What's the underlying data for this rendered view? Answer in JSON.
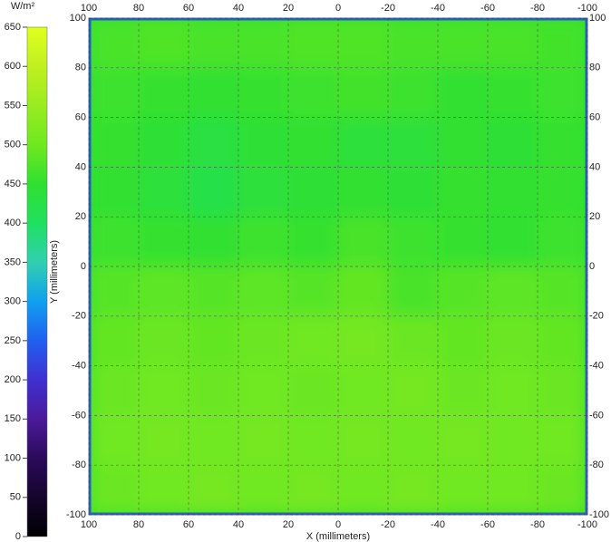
{
  "chart_data": {
    "type": "heatmap",
    "xlabel": "X (millimeters)",
    "ylabel": "Y (millimeters)",
    "colorbar_label": "W/m²",
    "xlim": [
      100,
      -100
    ],
    "ylim": [
      -100,
      100
    ],
    "xticks": [
      100,
      80,
      60,
      40,
      20,
      0,
      -20,
      -40,
      -60,
      -80,
      -100
    ],
    "yticks": [
      100,
      80,
      60,
      40,
      20,
      0,
      -20,
      -40,
      -60,
      -80,
      -100
    ],
    "zlim": [
      0,
      650
    ],
    "zticks": [
      0,
      50,
      100,
      150,
      200,
      250,
      300,
      350,
      400,
      450,
      500,
      550,
      600,
      650
    ],
    "colormap": [
      {
        "value": 0,
        "color": "#000000"
      },
      {
        "value": 100,
        "color": "#2a0a5a"
      },
      {
        "value": 150,
        "color": "#4b1a9a"
      },
      {
        "value": 200,
        "color": "#4030d0"
      },
      {
        "value": 250,
        "color": "#2060f0"
      },
      {
        "value": 300,
        "color": "#10a0f0"
      },
      {
        "value": 350,
        "color": "#30d0b0"
      },
      {
        "value": 400,
        "color": "#20e060"
      },
      {
        "value": 450,
        "color": "#30e030"
      },
      {
        "value": 500,
        "color": "#70e820"
      },
      {
        "value": 600,
        "color": "#c0f020"
      },
      {
        "value": 650,
        "color": "#e0ff20"
      }
    ],
    "grid": true,
    "x": [
      90,
      70,
      50,
      30,
      10,
      -10,
      -30,
      -50,
      -70,
      -90
    ],
    "y": [
      90,
      70,
      50,
      30,
      10,
      -10,
      -30,
      -50,
      -70,
      -90
    ],
    "z": [
      [
        470,
        475,
        470,
        470,
        475,
        475,
        470,
        470,
        470,
        465
      ],
      [
        460,
        455,
        450,
        455,
        460,
        465,
        460,
        450,
        455,
        460
      ],
      [
        455,
        445,
        430,
        445,
        450,
        440,
        440,
        450,
        445,
        455
      ],
      [
        450,
        440,
        425,
        440,
        445,
        450,
        445,
        455,
        450,
        455
      ],
      [
        460,
        455,
        450,
        460,
        455,
        470,
        460,
        455,
        450,
        460
      ],
      [
        480,
        485,
        480,
        485,
        480,
        490,
        470,
        480,
        485,
        480
      ],
      [
        490,
        495,
        490,
        495,
        500,
        505,
        495,
        490,
        495,
        490
      ],
      [
        495,
        500,
        495,
        500,
        495,
        500,
        505,
        495,
        500,
        495
      ],
      [
        500,
        505,
        500,
        505,
        500,
        505,
        500,
        505,
        500,
        500
      ],
      [
        495,
        500,
        505,
        500,
        505,
        500,
        505,
        500,
        500,
        495
      ]
    ]
  }
}
